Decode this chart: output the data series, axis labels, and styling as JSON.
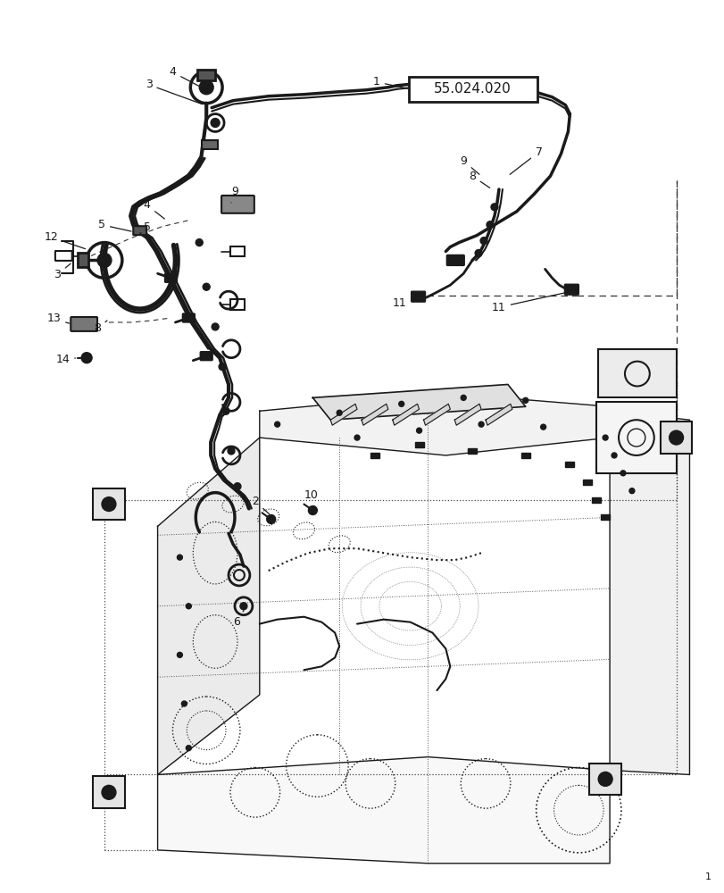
{
  "bg_color": "#ffffff",
  "box_label": "55.024.020",
  "line_color": "#1a1a1a",
  "page_num": "1",
  "fig_width": 8.12,
  "fig_height": 10.0,
  "dpi": 100
}
